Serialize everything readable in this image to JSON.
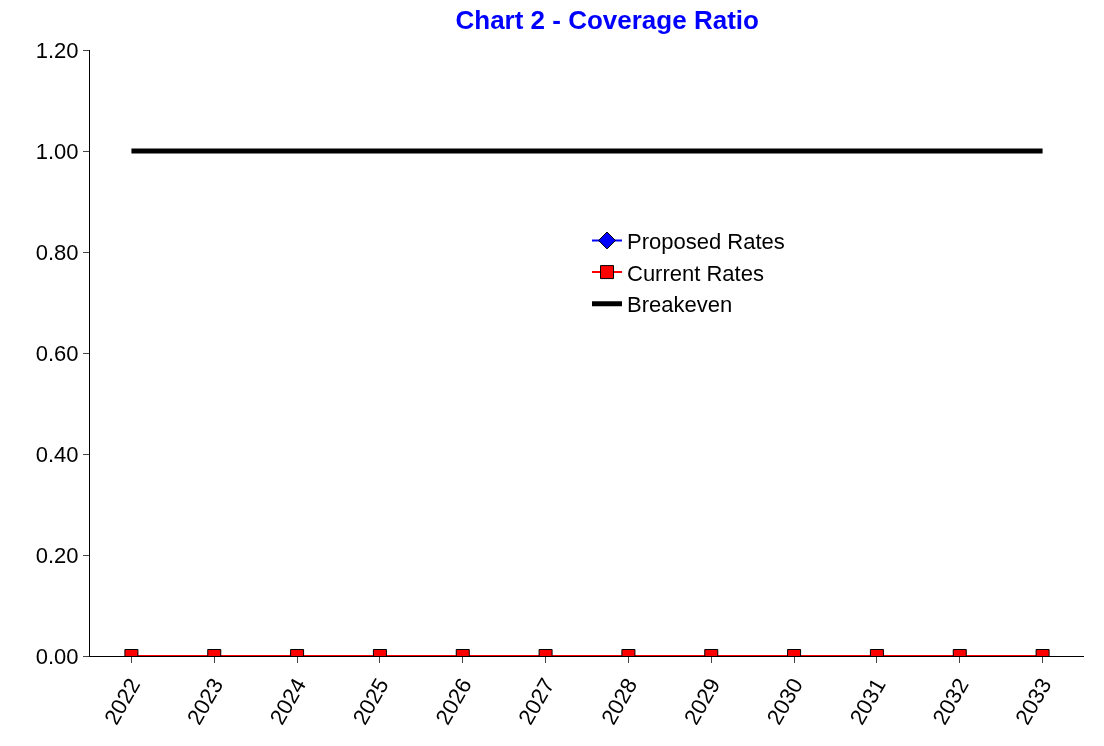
{
  "chart_data": {
    "type": "line",
    "title": "Chart 2 - Coverage Ratio",
    "categories": [
      "2022",
      "2023",
      "2024",
      "2025",
      "2026",
      "2027",
      "2028",
      "2029",
      "2030",
      "2031",
      "2032",
      "2033"
    ],
    "series": [
      {
        "name": "Proposed Rates",
        "color": "#0000ff",
        "marker": "diamond",
        "values": [
          null,
          null,
          null,
          null,
          null,
          null,
          null,
          null,
          null,
          null,
          null,
          null
        ]
      },
      {
        "name": "Current Rates",
        "color": "#ff0000",
        "marker": "square",
        "values": [
          0,
          0,
          0,
          0,
          0,
          0,
          0,
          0,
          0,
          0,
          0,
          0
        ]
      },
      {
        "name": "Breakeven",
        "color": "#000000",
        "marker": "none",
        "values": [
          1,
          1,
          1,
          1,
          1,
          1,
          1,
          1,
          1,
          1,
          1,
          1
        ]
      }
    ],
    "ylim": [
      0,
      1.2
    ],
    "yticks": [
      {
        "value": 0,
        "label": "0.00"
      },
      {
        "value": 0.2,
        "label": "0.20"
      },
      {
        "value": 0.4,
        "label": "0.40"
      },
      {
        "value": 0.6,
        "label": "0.60"
      },
      {
        "value": 0.8,
        "label": "0.80"
      },
      {
        "value": 1,
        "label": "1.00"
      },
      {
        "value": 1.2,
        "label": "1.20"
      }
    ],
    "grid": false,
    "legend": "center"
  }
}
